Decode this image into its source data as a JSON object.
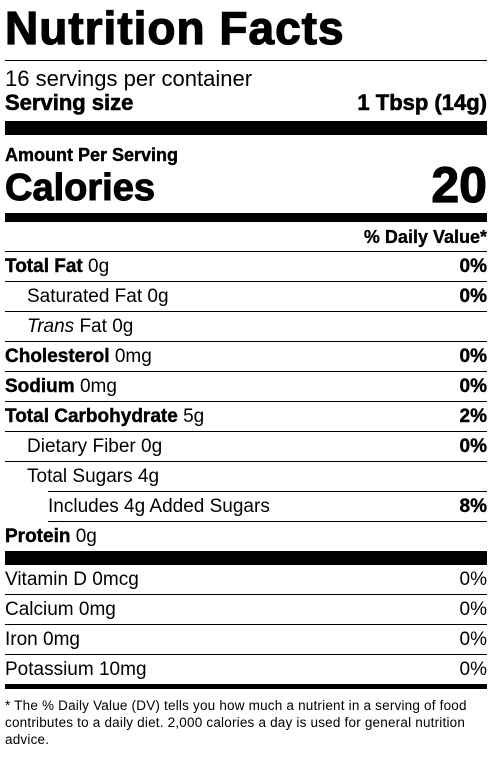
{
  "title": "Nutrition Facts",
  "servings": "16 servings per container",
  "serving_size": {
    "label": "Serving size",
    "value": "1 Tbsp (14g)"
  },
  "amount_per_serving": "Amount Per Serving",
  "calories": {
    "label": "Calories",
    "value": "20"
  },
  "dv_header": "% Daily Value*",
  "nutrients": [
    {
      "name": "Total Fat",
      "amount": "0g",
      "dv": "0%"
    },
    {
      "name": "Saturated Fat",
      "amount": "0g",
      "dv": "0%"
    },
    {
      "name_italic": "Trans",
      "name_rest": "Fat",
      "amount": "0g",
      "dv": ""
    },
    {
      "name": "Cholesterol",
      "amount": "0mg",
      "dv": "0%"
    },
    {
      "name": "Sodium",
      "amount": "0mg",
      "dv": "0%"
    },
    {
      "name": "Total Carbohydrate",
      "amount": "5g",
      "dv": "2%"
    },
    {
      "name": "Dietary Fiber",
      "amount": "0g",
      "dv": "0%"
    },
    {
      "name": "Total Sugars",
      "amount": "4g",
      "dv": ""
    },
    {
      "name": "Includes 4g Added Sugars",
      "amount": "",
      "dv": "8%"
    },
    {
      "name": "Protein",
      "amount": "0g",
      "dv": ""
    }
  ],
  "vitamins": [
    {
      "name": "Vitamin D",
      "amount": "0mcg",
      "dv": "0%"
    },
    {
      "name": "Calcium",
      "amount": "0mg",
      "dv": "0%"
    },
    {
      "name": "Iron",
      "amount": "0mg",
      "dv": "0%"
    },
    {
      "name": "Potassium",
      "amount": "10mg",
      "dv": "0%"
    }
  ],
  "footnote": "* The % Daily Value (DV) tells you how much a nutrient in a serving of food contributes to a daily diet. 2,000 calories a day is used for general nutrition advice."
}
